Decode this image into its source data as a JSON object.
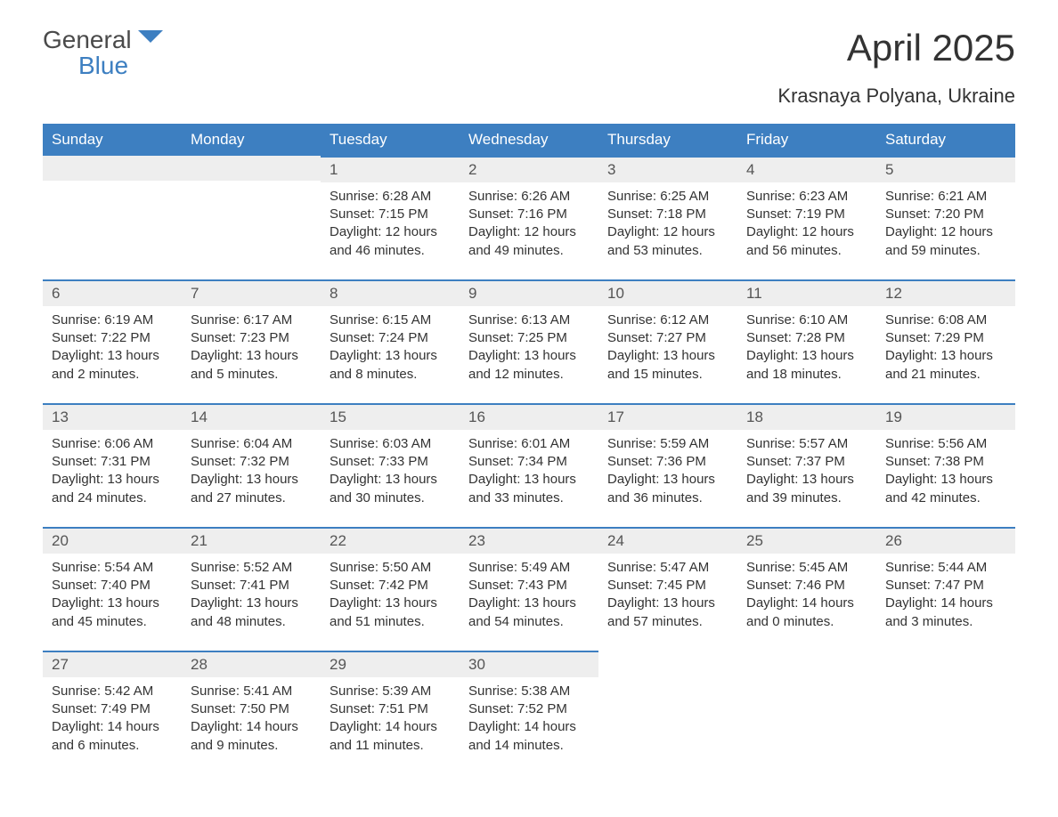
{
  "logo": {
    "line1": "General",
    "line2": "Blue",
    "icon_color": "#3d7fc1"
  },
  "title": "April 2025",
  "location": "Krasnaya Polyana, Ukraine",
  "header_bg": "#3d7fc1",
  "header_text_color": "#ffffff",
  "daynum_bg": "#eeeeee",
  "daynum_border": "#3d7fc1",
  "text_color": "#333333",
  "days_of_week": [
    "Sunday",
    "Monday",
    "Tuesday",
    "Wednesday",
    "Thursday",
    "Friday",
    "Saturday"
  ],
  "weeks": [
    [
      null,
      null,
      {
        "n": "1",
        "sunrise": "Sunrise: 6:28 AM",
        "sunset": "Sunset: 7:15 PM",
        "day1": "Daylight: 12 hours",
        "day2": "and 46 minutes."
      },
      {
        "n": "2",
        "sunrise": "Sunrise: 6:26 AM",
        "sunset": "Sunset: 7:16 PM",
        "day1": "Daylight: 12 hours",
        "day2": "and 49 minutes."
      },
      {
        "n": "3",
        "sunrise": "Sunrise: 6:25 AM",
        "sunset": "Sunset: 7:18 PM",
        "day1": "Daylight: 12 hours",
        "day2": "and 53 minutes."
      },
      {
        "n": "4",
        "sunrise": "Sunrise: 6:23 AM",
        "sunset": "Sunset: 7:19 PM",
        "day1": "Daylight: 12 hours",
        "day2": "and 56 minutes."
      },
      {
        "n": "5",
        "sunrise": "Sunrise: 6:21 AM",
        "sunset": "Sunset: 7:20 PM",
        "day1": "Daylight: 12 hours",
        "day2": "and 59 minutes."
      }
    ],
    [
      {
        "n": "6",
        "sunrise": "Sunrise: 6:19 AM",
        "sunset": "Sunset: 7:22 PM",
        "day1": "Daylight: 13 hours",
        "day2": "and 2 minutes."
      },
      {
        "n": "7",
        "sunrise": "Sunrise: 6:17 AM",
        "sunset": "Sunset: 7:23 PM",
        "day1": "Daylight: 13 hours",
        "day2": "and 5 minutes."
      },
      {
        "n": "8",
        "sunrise": "Sunrise: 6:15 AM",
        "sunset": "Sunset: 7:24 PM",
        "day1": "Daylight: 13 hours",
        "day2": "and 8 minutes."
      },
      {
        "n": "9",
        "sunrise": "Sunrise: 6:13 AM",
        "sunset": "Sunset: 7:25 PM",
        "day1": "Daylight: 13 hours",
        "day2": "and 12 minutes."
      },
      {
        "n": "10",
        "sunrise": "Sunrise: 6:12 AM",
        "sunset": "Sunset: 7:27 PM",
        "day1": "Daylight: 13 hours",
        "day2": "and 15 minutes."
      },
      {
        "n": "11",
        "sunrise": "Sunrise: 6:10 AM",
        "sunset": "Sunset: 7:28 PM",
        "day1": "Daylight: 13 hours",
        "day2": "and 18 minutes."
      },
      {
        "n": "12",
        "sunrise": "Sunrise: 6:08 AM",
        "sunset": "Sunset: 7:29 PM",
        "day1": "Daylight: 13 hours",
        "day2": "and 21 minutes."
      }
    ],
    [
      {
        "n": "13",
        "sunrise": "Sunrise: 6:06 AM",
        "sunset": "Sunset: 7:31 PM",
        "day1": "Daylight: 13 hours",
        "day2": "and 24 minutes."
      },
      {
        "n": "14",
        "sunrise": "Sunrise: 6:04 AM",
        "sunset": "Sunset: 7:32 PM",
        "day1": "Daylight: 13 hours",
        "day2": "and 27 minutes."
      },
      {
        "n": "15",
        "sunrise": "Sunrise: 6:03 AM",
        "sunset": "Sunset: 7:33 PM",
        "day1": "Daylight: 13 hours",
        "day2": "and 30 minutes."
      },
      {
        "n": "16",
        "sunrise": "Sunrise: 6:01 AM",
        "sunset": "Sunset: 7:34 PM",
        "day1": "Daylight: 13 hours",
        "day2": "and 33 minutes."
      },
      {
        "n": "17",
        "sunrise": "Sunrise: 5:59 AM",
        "sunset": "Sunset: 7:36 PM",
        "day1": "Daylight: 13 hours",
        "day2": "and 36 minutes."
      },
      {
        "n": "18",
        "sunrise": "Sunrise: 5:57 AM",
        "sunset": "Sunset: 7:37 PM",
        "day1": "Daylight: 13 hours",
        "day2": "and 39 minutes."
      },
      {
        "n": "19",
        "sunrise": "Sunrise: 5:56 AM",
        "sunset": "Sunset: 7:38 PM",
        "day1": "Daylight: 13 hours",
        "day2": "and 42 minutes."
      }
    ],
    [
      {
        "n": "20",
        "sunrise": "Sunrise: 5:54 AM",
        "sunset": "Sunset: 7:40 PM",
        "day1": "Daylight: 13 hours",
        "day2": "and 45 minutes."
      },
      {
        "n": "21",
        "sunrise": "Sunrise: 5:52 AM",
        "sunset": "Sunset: 7:41 PM",
        "day1": "Daylight: 13 hours",
        "day2": "and 48 minutes."
      },
      {
        "n": "22",
        "sunrise": "Sunrise: 5:50 AM",
        "sunset": "Sunset: 7:42 PM",
        "day1": "Daylight: 13 hours",
        "day2": "and 51 minutes."
      },
      {
        "n": "23",
        "sunrise": "Sunrise: 5:49 AM",
        "sunset": "Sunset: 7:43 PM",
        "day1": "Daylight: 13 hours",
        "day2": "and 54 minutes."
      },
      {
        "n": "24",
        "sunrise": "Sunrise: 5:47 AM",
        "sunset": "Sunset: 7:45 PM",
        "day1": "Daylight: 13 hours",
        "day2": "and 57 minutes."
      },
      {
        "n": "25",
        "sunrise": "Sunrise: 5:45 AM",
        "sunset": "Sunset: 7:46 PM",
        "day1": "Daylight: 14 hours",
        "day2": "and 0 minutes."
      },
      {
        "n": "26",
        "sunrise": "Sunrise: 5:44 AM",
        "sunset": "Sunset: 7:47 PM",
        "day1": "Daylight: 14 hours",
        "day2": "and 3 minutes."
      }
    ],
    [
      {
        "n": "27",
        "sunrise": "Sunrise: 5:42 AM",
        "sunset": "Sunset: 7:49 PM",
        "day1": "Daylight: 14 hours",
        "day2": "and 6 minutes."
      },
      {
        "n": "28",
        "sunrise": "Sunrise: 5:41 AM",
        "sunset": "Sunset: 7:50 PM",
        "day1": "Daylight: 14 hours",
        "day2": "and 9 minutes."
      },
      {
        "n": "29",
        "sunrise": "Sunrise: 5:39 AM",
        "sunset": "Sunset: 7:51 PM",
        "day1": "Daylight: 14 hours",
        "day2": "and 11 minutes."
      },
      {
        "n": "30",
        "sunrise": "Sunrise: 5:38 AM",
        "sunset": "Sunset: 7:52 PM",
        "day1": "Daylight: 14 hours",
        "day2": "and 14 minutes."
      },
      null,
      null,
      null
    ]
  ]
}
